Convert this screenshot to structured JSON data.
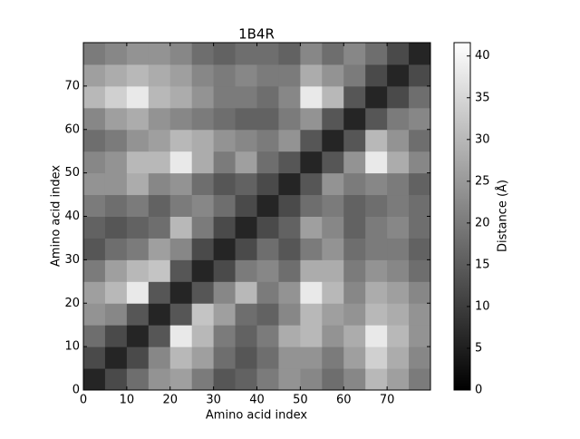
{
  "chart_data": {
    "type": "heatmap",
    "title": "1B4R",
    "x_label": "Amino acid index",
    "y_label": "Amino acid index",
    "xbins": [
      0,
      5,
      10,
      15,
      20,
      25,
      30,
      35,
      40,
      45,
      50,
      55,
      60,
      65,
      70,
      75,
      80
    ],
    "ybins": [
      0,
      5,
      10,
      15,
      20,
      25,
      30,
      35,
      40,
      45,
      50,
      55,
      60,
      65,
      70,
      75,
      80
    ],
    "values": [
      [
        6,
        12,
        18,
        24,
        26,
        20,
        14,
        16,
        20,
        24,
        22,
        18,
        22,
        30,
        26,
        20
      ],
      [
        12,
        6,
        12,
        22,
        30,
        26,
        18,
        14,
        18,
        24,
        24,
        20,
        26,
        34,
        28,
        22
      ],
      [
        18,
        12,
        6,
        14,
        38,
        30,
        20,
        16,
        20,
        28,
        30,
        24,
        28,
        38,
        30,
        24
      ],
      [
        24,
        22,
        14,
        6,
        14,
        32,
        26,
        18,
        16,
        22,
        30,
        26,
        24,
        30,
        28,
        24
      ],
      [
        26,
        30,
        38,
        14,
        6,
        14,
        22,
        30,
        20,
        24,
        38,
        30,
        22,
        28,
        26,
        22
      ],
      [
        20,
        26,
        30,
        32,
        14,
        6,
        12,
        20,
        22,
        18,
        28,
        28,
        20,
        24,
        22,
        18
      ],
      [
        14,
        18,
        20,
        26,
        22,
        12,
        6,
        12,
        18,
        14,
        20,
        24,
        18,
        20,
        20,
        16
      ],
      [
        16,
        14,
        16,
        18,
        30,
        20,
        12,
        6,
        12,
        16,
        26,
        22,
        16,
        20,
        22,
        18
      ],
      [
        20,
        18,
        20,
        16,
        20,
        22,
        18,
        12,
        6,
        12,
        18,
        20,
        16,
        18,
        20,
        18
      ],
      [
        24,
        24,
        28,
        22,
        24,
        18,
        14,
        16,
        12,
        6,
        14,
        24,
        20,
        22,
        20,
        16
      ],
      [
        22,
        24,
        30,
        30,
        38,
        28,
        20,
        26,
        18,
        14,
        6,
        14,
        24,
        38,
        28,
        22
      ],
      [
        18,
        20,
        24,
        26,
        30,
        28,
        24,
        22,
        20,
        24,
        14,
        6,
        14,
        30,
        24,
        18
      ],
      [
        22,
        26,
        28,
        24,
        22,
        20,
        18,
        16,
        16,
        20,
        24,
        14,
        6,
        14,
        20,
        22
      ],
      [
        30,
        34,
        38,
        30,
        28,
        24,
        20,
        20,
        18,
        22,
        38,
        30,
        14,
        6,
        12,
        18
      ],
      [
        26,
        28,
        30,
        28,
        26,
        22,
        20,
        22,
        20,
        20,
        28,
        24,
        20,
        12,
        6,
        12
      ],
      [
        20,
        22,
        24,
        24,
        22,
        18,
        16,
        18,
        18,
        16,
        22,
        18,
        22,
        18,
        12,
        6
      ]
    ],
    "xlim": [
      0,
      80
    ],
    "ylim": [
      0,
      80
    ],
    "xticks": [
      0,
      10,
      20,
      30,
      40,
      50,
      60,
      70
    ],
    "yticks": [
      0,
      10,
      20,
      30,
      40,
      50,
      60,
      70
    ],
    "colormap": "gray",
    "colorbar": {
      "label": "Distance (Å)",
      "lim": [
        0,
        41.6
      ],
      "ticks": [
        0,
        5,
        10,
        15,
        20,
        25,
        30,
        35,
        40
      ]
    }
  }
}
